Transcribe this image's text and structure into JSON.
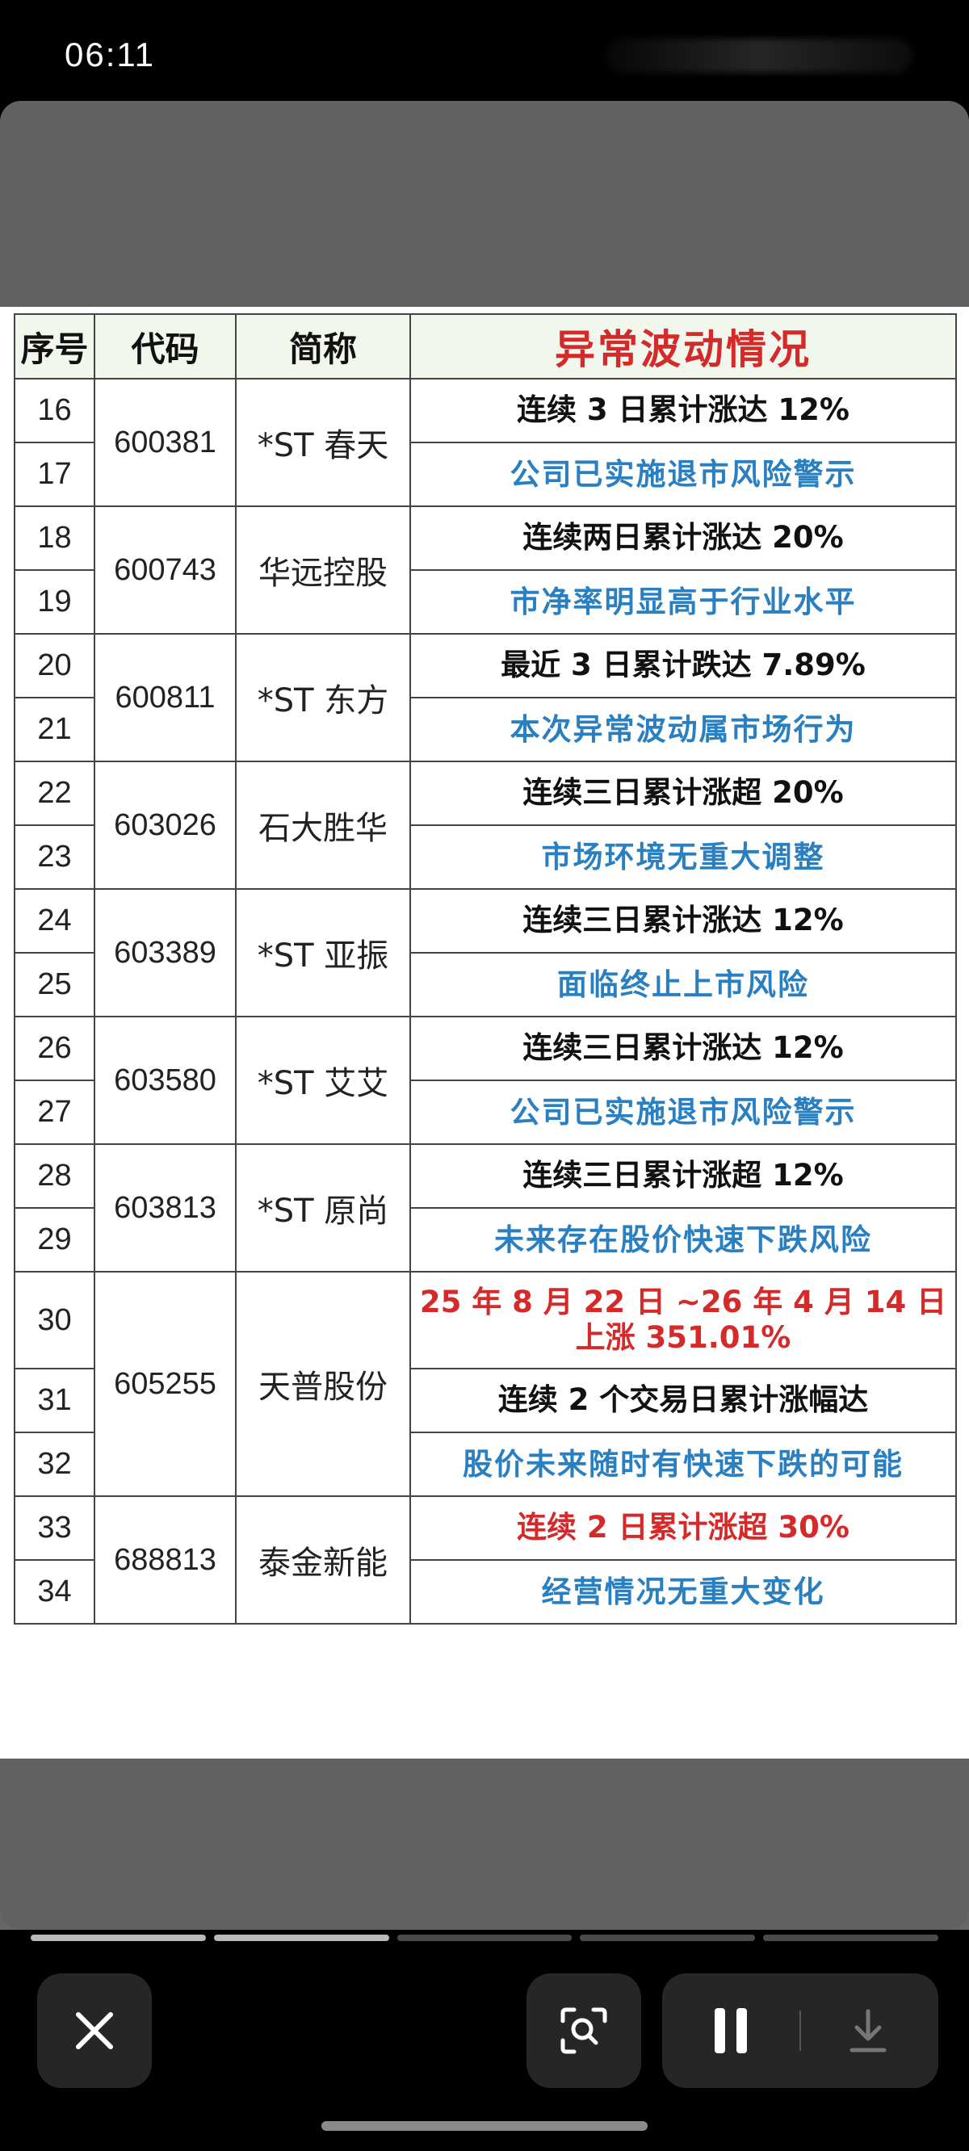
{
  "status": {
    "time": "06:11"
  },
  "table": {
    "headers": [
      "序号",
      "代码",
      "简称",
      "异常波动情况"
    ],
    "rows": [
      {
        "seqs": [
          "16",
          "17"
        ],
        "code": "600381",
        "name": "*ST 春天",
        "lines": [
          {
            "text": "连续 3 日累计涨达 12%",
            "style": "black"
          },
          {
            "text": "公司已实施退市风险警示",
            "style": "blue"
          }
        ]
      },
      {
        "seqs": [
          "18",
          "19"
        ],
        "code": "600743",
        "name": "华远控股",
        "lines": [
          {
            "text": "连续两日累计涨达 20%",
            "style": "black"
          },
          {
            "text": "市净率明显高于行业水平",
            "style": "blue"
          }
        ]
      },
      {
        "seqs": [
          "20",
          "21"
        ],
        "code": "600811",
        "name": "*ST 东方",
        "lines": [
          {
            "text": "最近 3 日累计跌达 7.89%",
            "style": "black"
          },
          {
            "text": "本次异常波动属市场行为",
            "style": "blue"
          }
        ]
      },
      {
        "seqs": [
          "22",
          "23"
        ],
        "code": "603026",
        "name": "石大胜华",
        "lines": [
          {
            "text": "连续三日累计涨超 20%",
            "style": "black"
          },
          {
            "text": "市场环境无重大调整",
            "style": "blue"
          }
        ]
      },
      {
        "seqs": [
          "24",
          "25"
        ],
        "code": "603389",
        "name": "*ST 亚振",
        "lines": [
          {
            "text": "连续三日累计涨达 12%",
            "style": "black"
          },
          {
            "text": "面临终止上市风险",
            "style": "blue"
          }
        ]
      },
      {
        "seqs": [
          "26",
          "27"
        ],
        "code": "603580",
        "name": "*ST 艾艾",
        "lines": [
          {
            "text": "连续三日累计涨达 12%",
            "style": "black"
          },
          {
            "text": "公司已实施退市风险警示",
            "style": "blue"
          }
        ]
      },
      {
        "seqs": [
          "28",
          "29"
        ],
        "code": "603813",
        "name": "*ST 原尚",
        "lines": [
          {
            "text": "连续三日累计涨超 12%",
            "style": "black"
          },
          {
            "text": "未来存在股价快速下跌风险",
            "style": "blue"
          }
        ]
      },
      {
        "seqs": [
          "30",
          "31",
          "32"
        ],
        "code": "605255",
        "name": "天普股份",
        "lines": [
          {
            "text": "25 年 8 月 22 日 ~26 年 4 月 14 日上涨 351.01%",
            "style": "red"
          },
          {
            "text": "连续 2 个交易日累计涨幅达",
            "style": "black"
          },
          {
            "text": "股价未来随时有快速下跌的可能",
            "style": "blue"
          }
        ]
      },
      {
        "seqs": [
          "33",
          "34"
        ],
        "code": "688813",
        "name": "泰金新能",
        "lines": [
          {
            "text": "连续 2 日累计涨超 30%",
            "style": "red"
          },
          {
            "text": "经营情况无重大变化",
            "style": "blue"
          }
        ]
      }
    ]
  },
  "progress": {
    "total_segments": 5,
    "completed_segments": 2
  },
  "controls": {
    "close_icon": "close-icon",
    "lens_icon": "lens-search-icon",
    "pause_icon": "pause-icon",
    "download_icon": "download-icon"
  }
}
